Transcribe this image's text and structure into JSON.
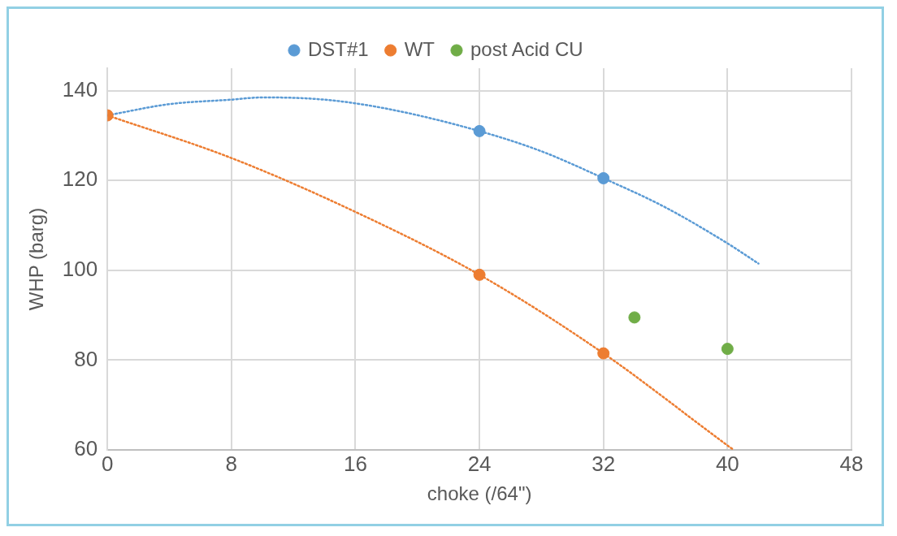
{
  "chart_data": {
    "type": "scatter",
    "xlabel": "choke (/64\")",
    "ylabel": "WHP (barg)",
    "xlim": [
      0,
      48
    ],
    "xticks": [
      0,
      8,
      16,
      24,
      32,
      40,
      48
    ],
    "ylim": [
      60,
      145
    ],
    "yticks": [
      60,
      80,
      100,
      120,
      140
    ],
    "grid": true,
    "legend": "top",
    "series": [
      {
        "name": "DST#1",
        "color": "#5b9bd5",
        "marker": "circle",
        "x": [
          24,
          32
        ],
        "values": [
          131,
          120.5
        ]
      },
      {
        "name": "WT",
        "color": "#ed7d31",
        "marker": "circle",
        "x": [
          0,
          24,
          32
        ],
        "values": [
          134.5,
          99,
          81.5
        ]
      },
      {
        "name": "post Acid CU",
        "color": "#70ad47",
        "marker": "circle",
        "x": [
          34,
          40
        ],
        "values": [
          89.5,
          82.5
        ]
      },
      {
        "type": "line",
        "line_style": "dotted",
        "marker": "none",
        "color": "#5b9bd5",
        "x": [
          0,
          4,
          8,
          10,
          14,
          18,
          24,
          28,
          32,
          36,
          40,
          42
        ],
        "values": [
          134.5,
          137,
          138,
          138.5,
          138,
          136,
          131,
          126.5,
          120.5,
          114,
          106,
          101.5
        ]
      },
      {
        "type": "line",
        "line_style": "dotted",
        "marker": "none",
        "color": "#ed7d31",
        "x": [
          0,
          8,
          16,
          24,
          32,
          40,
          40.4
        ],
        "values": [
          134.5,
          125,
          113,
          99,
          81.5,
          61,
          60
        ]
      }
    ]
  }
}
